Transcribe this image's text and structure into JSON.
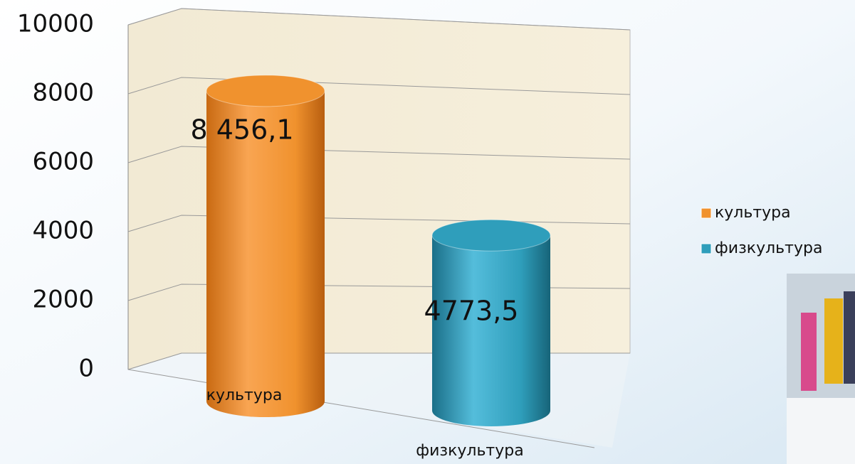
{
  "chart_data": {
    "type": "bar",
    "categories": [
      "культура",
      "физкультура"
    ],
    "values": [
      8456.1,
      4773.5
    ],
    "value_labels": [
      "8 456,1",
      "4773,5"
    ],
    "colors": [
      "#f0922e",
      "#2f9ebb"
    ],
    "ylim": [
      0,
      10000
    ],
    "yticks": [
      0,
      2000,
      4000,
      6000,
      8000,
      10000
    ],
    "grid": true,
    "legend": "right"
  }
}
